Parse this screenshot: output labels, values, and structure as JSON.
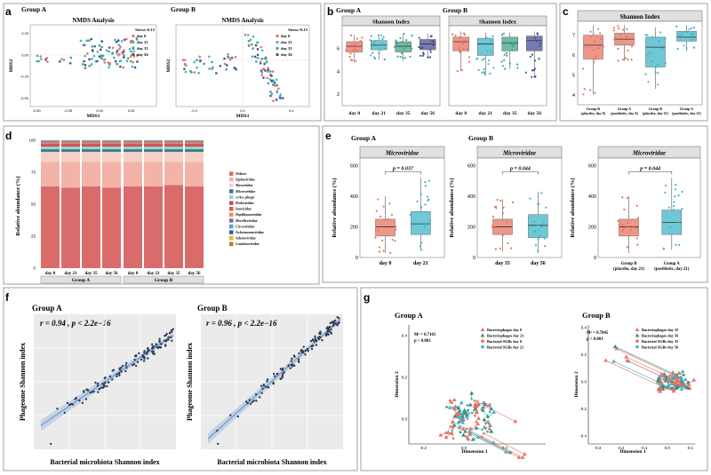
{
  "figure": {
    "panel_letters": [
      "a",
      "b",
      "c",
      "d",
      "e",
      "f",
      "g"
    ]
  },
  "colors": {
    "day0": "#e8735f",
    "day21": "#3fb6c7",
    "day35": "#3fa38a",
    "day56": "#4a4e93",
    "phage_line": "#7a9cc9",
    "band": "#b9cde4",
    "pt_dark": "#2f3c52"
  },
  "chart_data": [
    {
      "id": "a",
      "type": "scatter",
      "title": "NMDS Analysis",
      "groups": [
        {
          "name": "Group A",
          "stress": "Stress=0.15",
          "xticks": [
            "-0.50",
            "-0.25",
            "0.00",
            "0.25"
          ],
          "yticks": [
            "0.25",
            "0.00",
            "-0.25",
            "-0.50"
          ],
          "xlim": [
            -0.55,
            0.45
          ],
          "ylim": [
            -0.6,
            0.35
          ]
        },
        {
          "name": "Group B",
          "stress": "Stress=0.15",
          "xticks": [
            "-0.4",
            "0.0",
            "0.4"
          ],
          "yticks": [],
          "xlim": [
            -0.55,
            0.55
          ],
          "ylim": [
            -0.6,
            0.45
          ]
        }
      ],
      "xlabel": "MDS1",
      "ylabel": "MDS2",
      "legend": [
        "day 0",
        "day 21",
        "day 35",
        "day 56"
      ]
    },
    {
      "id": "b",
      "type": "box",
      "title": "Shannon Index",
      "groups": [
        "Group A",
        "Group B"
      ],
      "categories": [
        "day 0",
        "day 21",
        "day 35",
        "day 56"
      ],
      "yticks": [
        "2",
        "4",
        "6"
      ],
      "ylim": [
        1,
        8
      ],
      "series": [
        {
          "group": "Group A",
          "boxes": [
            {
              "q1": 5.7,
              "med": 6.2,
              "q3": 6.6,
              "min": 4.8,
              "max": 7.2
            },
            {
              "q1": 5.9,
              "med": 6.3,
              "q3": 6.7,
              "min": 5.0,
              "max": 7.2
            },
            {
              "q1": 5.7,
              "med": 6.2,
              "q3": 6.6,
              "min": 4.9,
              "max": 7.3
            },
            {
              "q1": 5.9,
              "med": 6.4,
              "q3": 6.8,
              "min": 5.1,
              "max": 7.3
            }
          ]
        },
        {
          "group": "Group B",
          "boxes": [
            {
              "q1": 5.8,
              "med": 6.6,
              "q3": 7.0,
              "min": 4.0,
              "max": 7.5
            },
            {
              "q1": 5.4,
              "med": 6.4,
              "q3": 6.9,
              "min": 3.6,
              "max": 7.4
            },
            {
              "q1": 5.8,
              "med": 6.5,
              "q3": 7.0,
              "min": 4.2,
              "max": 7.4
            },
            {
              "q1": 5.8,
              "med": 6.7,
              "q3": 7.1,
              "min": 3.5,
              "max": 7.5
            }
          ]
        }
      ]
    },
    {
      "id": "c",
      "type": "box",
      "title": "Shannon Index",
      "yticks": [
        "4",
        "5",
        "6",
        "7"
      ],
      "ylim": [
        3.5,
        7.7
      ],
      "categories": [
        "Group B (placebo, day 0)",
        "Group A (postbiotic, day 0)",
        "Group B (placebo, day 21)",
        "Group A (postbiotic, day 21)"
      ],
      "category_lines": [
        [
          "Group B",
          "(placebo, day 0)"
        ],
        [
          "Group A",
          "(postbiotic, day 0)"
        ],
        [
          "Group B",
          "(placebo, day 21)"
        ],
        [
          "Group A",
          "(postbiotic, day 21)"
        ]
      ],
      "boxes": [
        {
          "q1": 5.8,
          "med": 6.5,
          "q3": 7.0,
          "min": 4.0,
          "max": 7.5
        },
        {
          "q1": 6.5,
          "med": 6.8,
          "q3": 7.1,
          "min": 5.7,
          "max": 7.5
        },
        {
          "q1": 5.4,
          "med": 6.4,
          "q3": 6.9,
          "min": 4.3,
          "max": 7.4
        },
        {
          "q1": 6.7,
          "med": 6.9,
          "q3": 7.2,
          "min": 6.2,
          "max": 7.5
        }
      ]
    },
    {
      "id": "d",
      "type": "stacked_bar",
      "ylabel": "Relative abundance (%)",
      "yticks": [
        "0",
        "25",
        "50",
        "75",
        "100"
      ],
      "ylim": [
        0,
        100
      ],
      "groups": [
        "Group A",
        "Group B"
      ],
      "categories": [
        "day 0",
        "day 21",
        "day 35",
        "day 56"
      ],
      "families": [
        "Others",
        "Siphoviridae",
        "Myoviridae",
        "Microviridae",
        "crAss-phage",
        "Podoviridae",
        "Inoviridae",
        "Papillomaviridae",
        "Herelleviridae",
        "Circoviridae",
        "Ackermannviridae",
        "Adenoviridae",
        "Caulimoviridae"
      ],
      "family_colors": [
        "#d96b6b",
        "#f3b3a8",
        "#f6cfc6",
        "#2f7f86",
        "#9bd3d0",
        "#cc4b5a",
        "#e05a4a",
        "#f08c5a",
        "#7a6db0",
        "#5aa2c9",
        "#3f5aa8",
        "#e8b23a",
        "#c8752a"
      ],
      "stacks_group_a": [
        [
          64,
          19,
          8,
          2,
          2,
          1.5,
          1,
          0.8,
          0.6,
          0.4,
          0.3,
          0.2,
          0.2
        ],
        [
          63,
          20,
          8,
          2,
          2,
          1.5,
          1,
          0.8,
          0.6,
          0.4,
          0.3,
          0.2,
          0.2
        ],
        [
          64,
          19,
          8,
          2,
          2,
          1.5,
          1,
          0.8,
          0.6,
          0.4,
          0.3,
          0.2,
          0.2
        ],
        [
          63,
          20,
          8,
          2,
          2,
          1.5,
          1,
          0.8,
          0.6,
          0.4,
          0.3,
          0.2,
          0.2
        ]
      ],
      "stacks_group_b": [
        [
          64,
          19,
          8,
          2,
          2,
          1.5,
          1,
          0.8,
          0.6,
          0.4,
          0.3,
          0.2,
          0.2
        ],
        [
          64,
          19,
          8,
          2,
          2,
          1.5,
          1,
          0.8,
          0.6,
          0.4,
          0.3,
          0.2,
          0.2
        ],
        [
          65,
          18,
          8,
          2,
          2,
          1.5,
          1,
          0.8,
          0.6,
          0.4,
          0.3,
          0.2,
          0.2
        ],
        [
          64,
          19,
          8,
          2,
          2,
          1.5,
          1,
          0.8,
          0.6,
          0.4,
          0.3,
          0.2,
          0.2
        ]
      ]
    },
    {
      "id": "e",
      "type": "box",
      "title": "Microviridae",
      "ylabel": "Relative abundance (%)",
      "yticks": [
        "0",
        "200",
        "400",
        "600"
      ],
      "ylim": [
        0,
        650
      ],
      "panels": [
        {
          "group": "Group A",
          "pvalue": "p = 0.037",
          "categories": [
            "day 0",
            "day 21"
          ],
          "category_lines": [
            [
              "day 0"
            ],
            [
              "day 21"
            ]
          ],
          "boxes": [
            {
              "q1": 140,
              "med": 200,
              "q3": 250,
              "min": 30,
              "max": 400,
              "color": "day0"
            },
            {
              "q1": 150,
              "med": 220,
              "q3": 300,
              "min": 50,
              "max": 520,
              "color": "day21"
            }
          ]
        },
        {
          "group": "Group B",
          "pvalue": "p = 0.044",
          "categories": [
            "day 35",
            "day 56"
          ],
          "category_lines": [
            [
              "day 35"
            ],
            [
              "day 56"
            ]
          ],
          "boxes": [
            {
              "q1": 150,
              "med": 200,
              "q3": 250,
              "min": 40,
              "max": 380,
              "color": "day0"
            },
            {
              "q1": 130,
              "med": 210,
              "q3": 280,
              "min": 30,
              "max": 430,
              "color": "day21"
            }
          ]
        },
        {
          "group": "",
          "pvalue": "p = 0.044",
          "categories": [
            "Group B (placebo, day 21)",
            "Group A (postbiotic, day 21)"
          ],
          "category_lines": [
            [
              "Group B",
              "(placebo, day 21)"
            ],
            [
              "Group A",
              "(postbiotic, day 21)"
            ]
          ],
          "boxes": [
            {
              "q1": 140,
              "med": 200,
              "q3": 250,
              "min": 30,
              "max": 400,
              "color": "day0"
            },
            {
              "q1": 150,
              "med": 230,
              "q3": 310,
              "min": 50,
              "max": 520,
              "color": "day21"
            }
          ]
        }
      ]
    },
    {
      "id": "f",
      "type": "scatter",
      "xlabel": "Bacterial microbiota Shannon index",
      "ylabel": "Phageome Shannon index",
      "panels": [
        {
          "group": "Group A",
          "stat": "r = 0.94 , p < 2.2e−16",
          "slope": 0.72,
          "intercept": 0.14
        },
        {
          "group": "Group B",
          "stat": "r = 0.96 , p < 2.2e−16",
          "slope": 0.95,
          "intercept": 0.03
        }
      ]
    },
    {
      "id": "g",
      "type": "procrustes",
      "xlabel": "Dimension 1",
      "ylabel": "Dimension 2",
      "panels": [
        {
          "group": "Group A",
          "m2": "M² = 0.7161",
          "p": "p < 0.001",
          "legend": [
            "Bacteriophages day 0",
            "Bacteriophages day 21",
            "Bacterial SGBs day 0",
            "Bacterial SGBs day 21"
          ],
          "xticks": [
            "-0.2",
            "0.0",
            "0.2"
          ],
          "xlim": [
            -0.27,
            0.4
          ],
          "yticks": [
            "0.0",
            "0.2",
            "0.4"
          ],
          "ylim": [
            -0.12,
            0.45
          ]
        },
        {
          "group": "Group B",
          "m2": "M² = 0.7845",
          "p": "p < 0.001",
          "legend": [
            "Bacteriophages day 35",
            "Bacteriophages day 56",
            "Bacterial SGBs day 35",
            "Bacterial SGBs day 56"
          ],
          "xticks": [
            "-0.3",
            "-0.2",
            "-0.1",
            "0.0",
            "0.1"
          ],
          "xlim": [
            -0.34,
            0.12
          ],
          "yticks": [
            "-0.4",
            "-0.2",
            "0.0",
            "0.2",
            "0.4"
          ],
          "ylim": [
            -0.46,
            0.42
          ]
        }
      ],
      "marker_colors": [
        "#e8735f",
        "#2f8f8a",
        "#e8735f",
        "#3fb6c7"
      ]
    }
  ]
}
